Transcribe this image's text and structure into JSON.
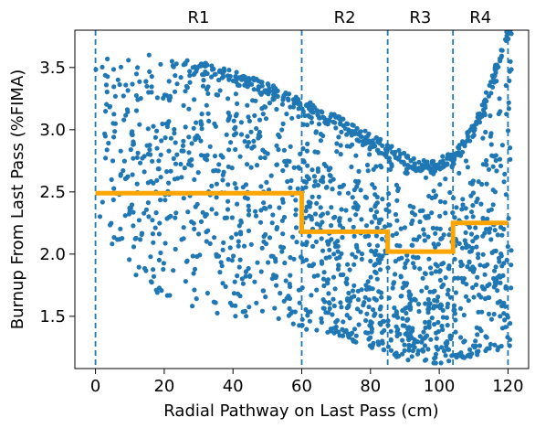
{
  "chart_data": {
    "type": "scatter",
    "xlabel": "Radial Pathway on Last Pass (cm)",
    "ylabel": "Burnup From Last Pass (%FIMA)",
    "xlim": [
      -6,
      126
    ],
    "ylim": [
      1.08,
      3.8
    ],
    "x_ticks": [
      0,
      20,
      40,
      60,
      80,
      100,
      120
    ],
    "y_ticks": [
      1.5,
      2.0,
      2.5,
      3.0,
      3.5
    ],
    "y_tick_labels": [
      "1.5",
      "2.0",
      "2.5",
      "3.0",
      "3.5"
    ],
    "grid": false,
    "scatter_color": "#1f77b4",
    "step_color": "#ffa500",
    "boundary_color": "#1f77b4",
    "regions": [
      {
        "label": "R1",
        "x_start": 0,
        "x_end": 60,
        "mean_burnup": 2.49
      },
      {
        "label": "R2",
        "x_start": 60,
        "x_end": 85,
        "mean_burnup": 2.18
      },
      {
        "label": "R3",
        "x_start": 85,
        "x_end": 104,
        "mean_burnup": 2.02
      },
      {
        "label": "R4",
        "x_start": 104,
        "x_end": 120,
        "mean_burnup": 2.25
      }
    ],
    "boundaries": [
      0,
      60,
      85,
      104,
      120
    ],
    "upper_envelope": [
      {
        "x": 20,
        "y": 3.55
      },
      {
        "x": 30,
        "y": 3.56
      },
      {
        "x": 40,
        "y": 3.48
      },
      {
        "x": 50,
        "y": 3.38
      },
      {
        "x": 60,
        "y": 3.25
      },
      {
        "x": 70,
        "y": 3.12
      },
      {
        "x": 80,
        "y": 2.97
      },
      {
        "x": 90,
        "y": 2.82
      },
      {
        "x": 97,
        "y": 2.75
      },
      {
        "x": 104,
        "y": 2.82
      },
      {
        "x": 110,
        "y": 3.05
      },
      {
        "x": 115,
        "y": 3.4
      },
      {
        "x": 120,
        "y": 3.85
      }
    ],
    "lower_envelope": [
      {
        "x": 0,
        "y": 2.3
      },
      {
        "x": 10,
        "y": 1.85
      },
      {
        "x": 20,
        "y": 1.65
      },
      {
        "x": 30,
        "y": 1.55
      },
      {
        "x": 40,
        "y": 1.5
      },
      {
        "x": 50,
        "y": 1.5
      },
      {
        "x": 60,
        "y": 1.4
      },
      {
        "x": 70,
        "y": 1.35
      },
      {
        "x": 80,
        "y": 1.25
      },
      {
        "x": 90,
        "y": 1.15
      },
      {
        "x": 100,
        "y": 1.12
      },
      {
        "x": 110,
        "y": 1.18
      },
      {
        "x": 120,
        "y": 1.25
      }
    ],
    "point_count": 1900
  }
}
